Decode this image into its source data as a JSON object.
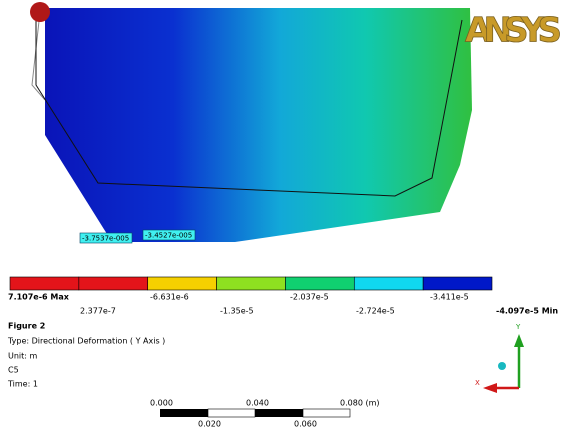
{
  "logo": "ANSYS",
  "probes": [
    "-3.7537e-005",
    "-3.4527e-005"
  ],
  "legend": {
    "colors": [
      "#e3141a",
      "#e3141a",
      "#f5d000",
      "#8ee020",
      "#10d070",
      "#10d8f0",
      "#0018c8"
    ],
    "labels_top": [
      "7.107e-6 Max",
      "-6.631e-6",
      "-2.037e-5",
      "-3.411e-5"
    ],
    "labels_bottom": [
      "2.377e-7",
      "-1.35e-5",
      "-2.724e-5",
      "-4.097e-5 Min"
    ]
  },
  "info": {
    "title": "Figure 2",
    "lines": [
      "Type: Directional Deformation ( Y Axis )",
      "Unit: m",
      "C5",
      "Time: 1"
    ]
  },
  "scale": {
    "top_labels": [
      "0.000",
      "0.040",
      "0.080 (m)"
    ],
    "bottom_labels": [
      "0.020",
      "0.060"
    ]
  },
  "triad": {
    "y": "Y",
    "x": "X"
  }
}
